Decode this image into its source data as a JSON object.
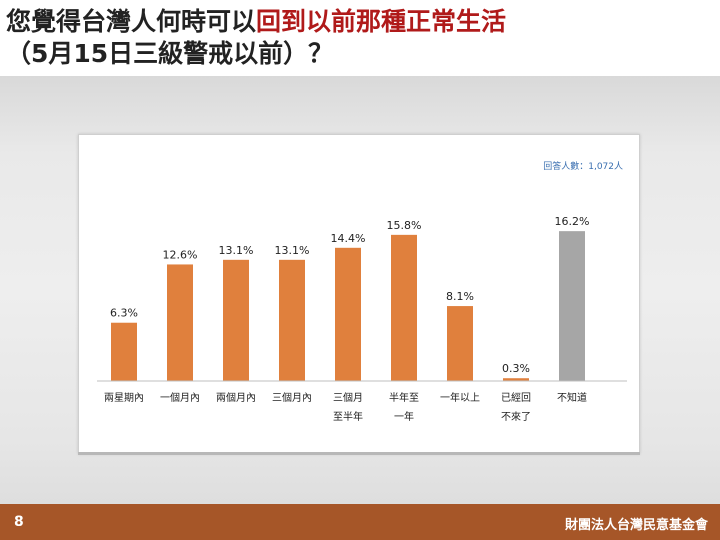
{
  "title": {
    "part1": "您覺得台灣人何時可以",
    "highlight": "回到以前那種正常生活",
    "line2": "（5月15日三級警戒以前）？"
  },
  "respondents": "回答人數：1,072人",
  "footer": {
    "page_number": "8",
    "organization": "財團法人台灣民意基金會"
  },
  "colors": {
    "bar": "#e0803d",
    "bar_unknown": "#a6a6a6",
    "highlight": "#b01a1a",
    "footer": "#a65628",
    "respondents": "#3a6fb0"
  },
  "chart_data": {
    "type": "bar",
    "categories": [
      [
        "兩星期內"
      ],
      [
        "一個月內"
      ],
      [
        "兩個月內"
      ],
      [
        "三個月內"
      ],
      [
        "三個月",
        "至半年"
      ],
      [
        "半年至",
        "一年"
      ],
      [
        "一年以上"
      ],
      [
        "已經回",
        "不來了"
      ],
      [
        "不知道"
      ]
    ],
    "values": [
      6.3,
      12.6,
      13.1,
      13.1,
      14.4,
      15.8,
      8.1,
      0.3,
      16.2
    ],
    "data_labels": [
      "6.3%",
      "12.6%",
      "13.1%",
      "13.1%",
      "14.4%",
      "15.8%",
      "8.1%",
      "0.3%",
      "16.2%"
    ],
    "ylim": [
      0,
      20
    ],
    "grid": false,
    "legend": "none"
  }
}
